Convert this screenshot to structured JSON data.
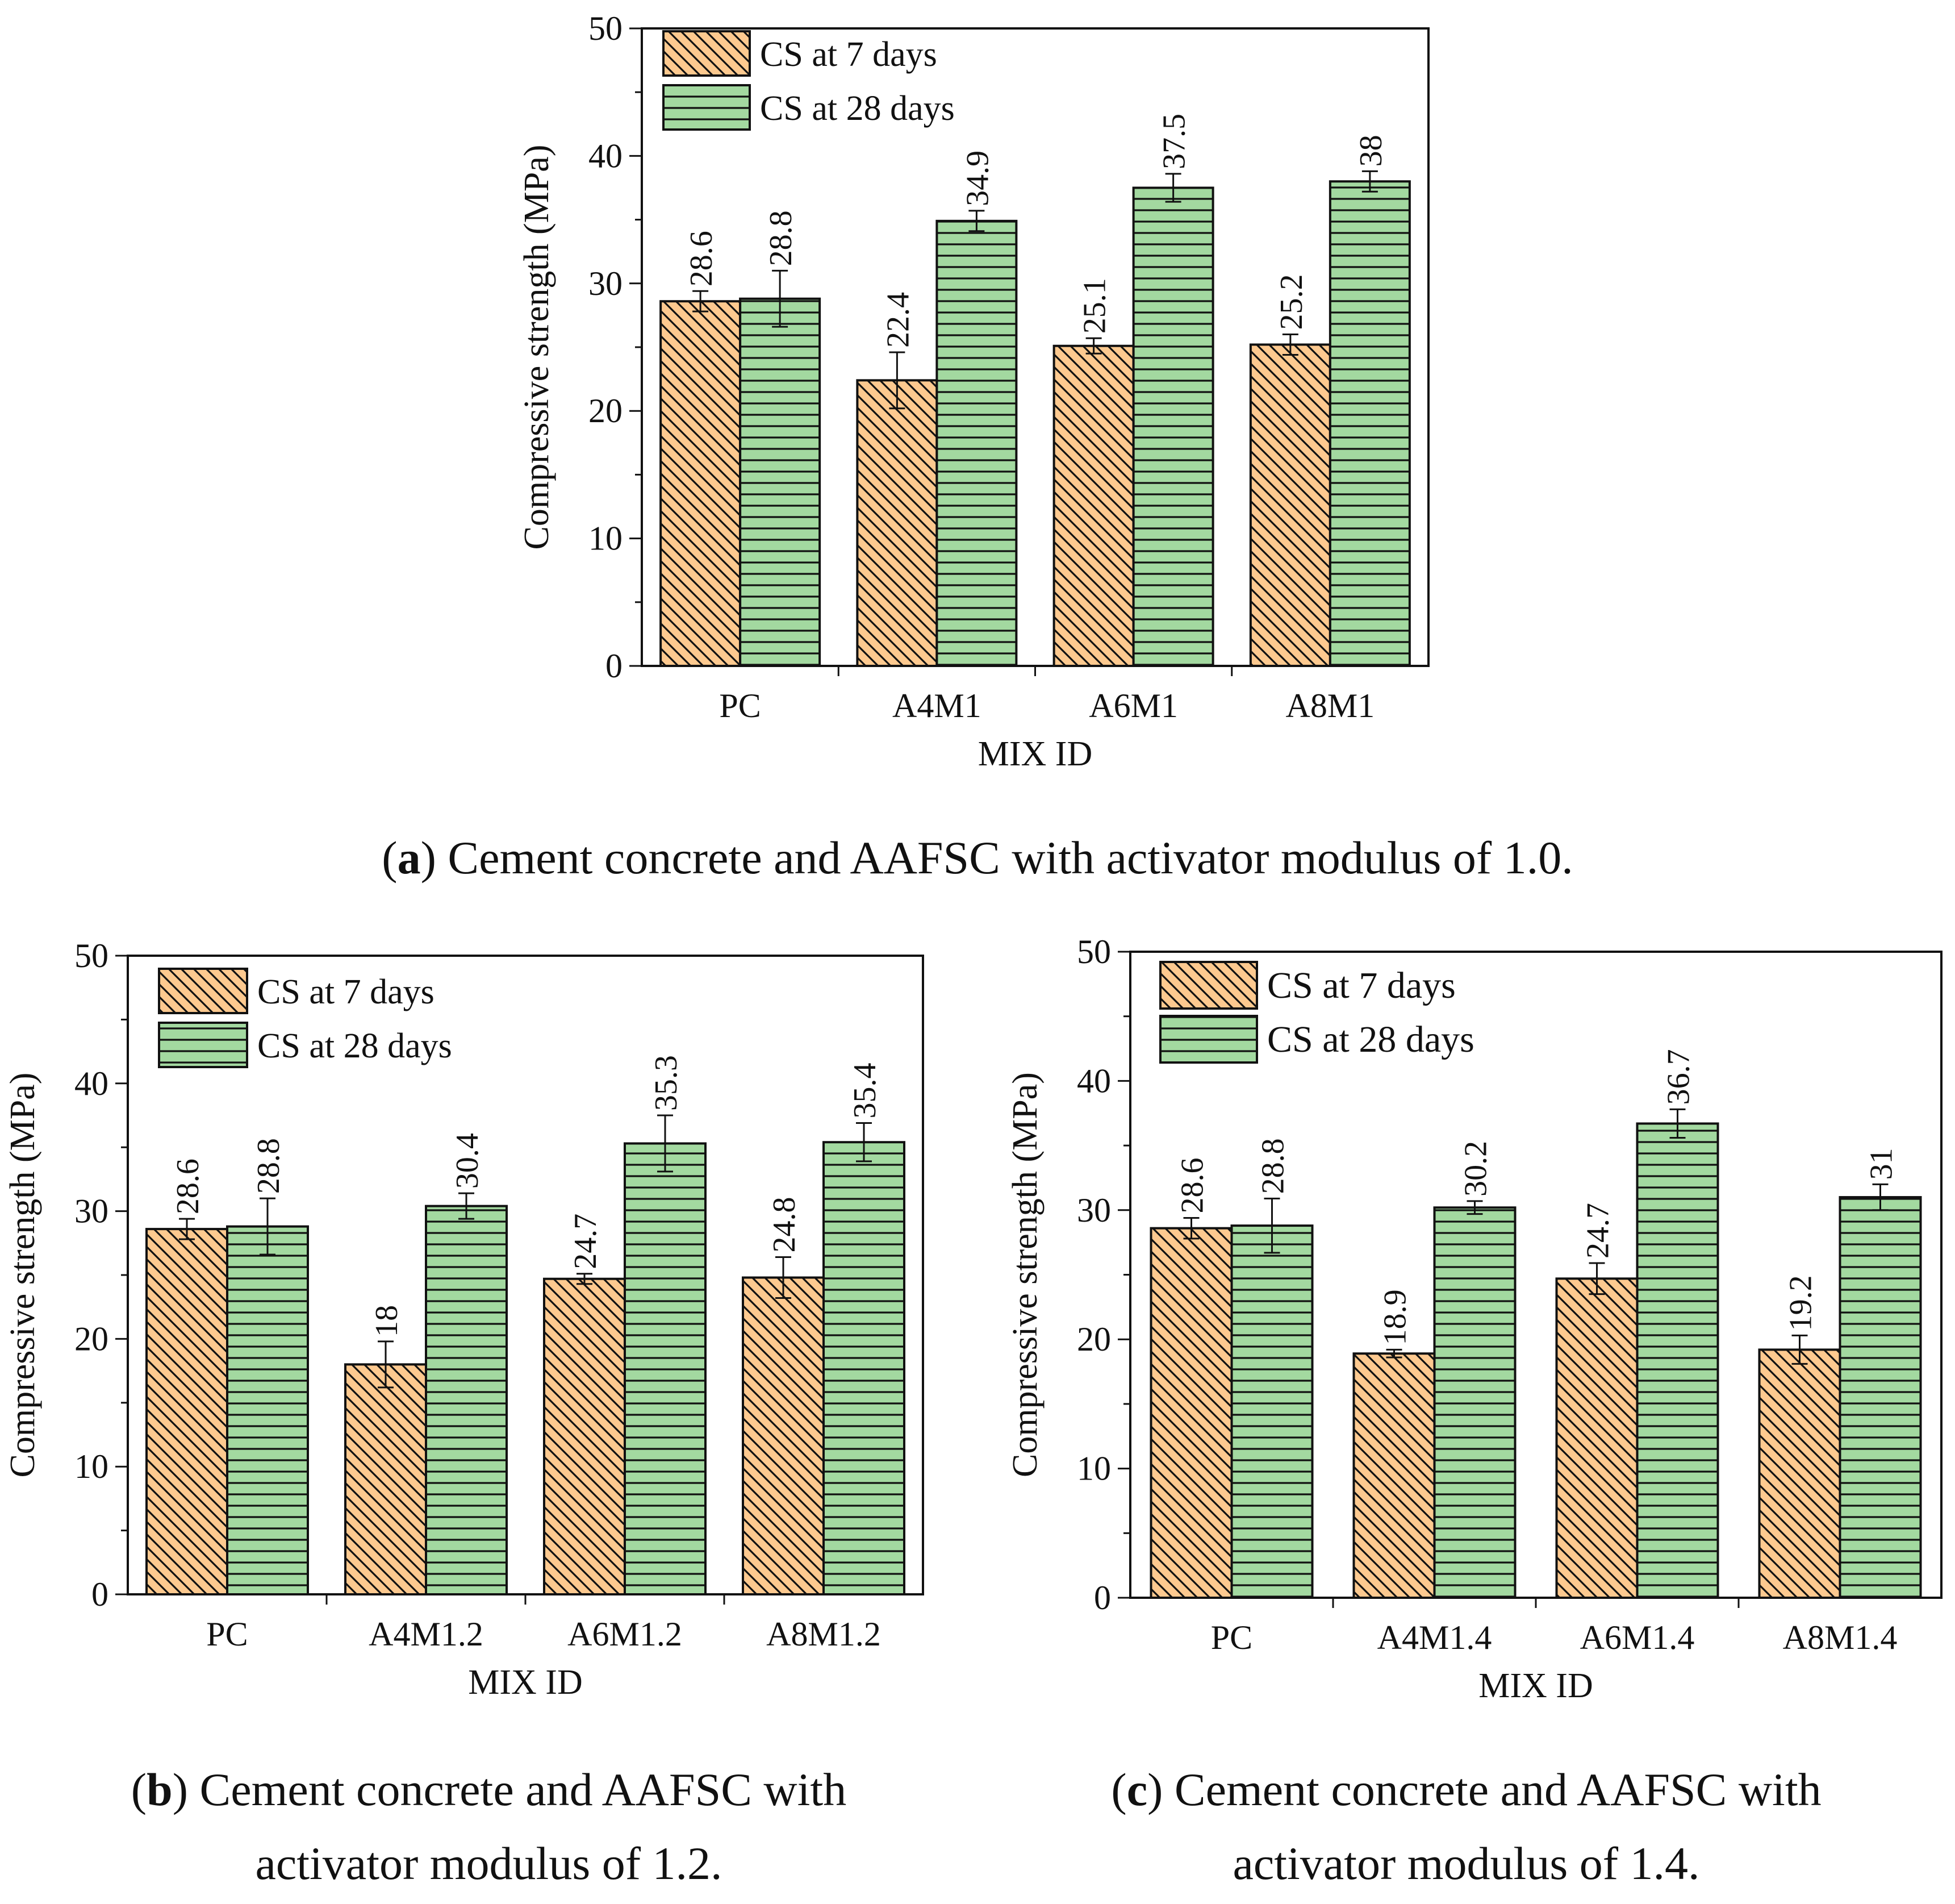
{
  "colors": {
    "cs7_fill": "#fdc98f",
    "cs28_fill": "#a3d9a0",
    "stroke": "#111111"
  },
  "chart_data": [
    {
      "type": "bar",
      "id": "a",
      "categories": [
        "PC",
        "A4M1",
        "A6M1",
        "A8M1"
      ],
      "series": [
        {
          "name": "CS at 7 days",
          "values": [
            28.6,
            22.4,
            25.1,
            25.2
          ],
          "errors": [
            0.8,
            2.2,
            0.6,
            0.8
          ],
          "labels": [
            "28.6",
            "22.4",
            "25.1",
            "25.2"
          ]
        },
        {
          "name": "CS at 28 days",
          "values": [
            28.8,
            34.9,
            37.5,
            38.0
          ],
          "errors": [
            2.2,
            0.8,
            1.1,
            0.8
          ],
          "labels": [
            "28.8",
            "34.9",
            "37.5",
            "38"
          ]
        }
      ],
      "xlabel": "MIX ID",
      "ylabel": "Compressive strength (MPa)",
      "ylim": [
        0,
        50
      ],
      "yticks": [
        "0",
        "10",
        "20",
        "30",
        "40",
        "50"
      ],
      "legend": "top-left",
      "caption_letter": "a",
      "caption_lines": [
        ") Cement concrete and AAFSC with activator modulus of 1.0."
      ]
    },
    {
      "type": "bar",
      "id": "b",
      "categories": [
        "PC",
        "A4M1.2",
        "A6M1.2",
        "A8M1.2"
      ],
      "series": [
        {
          "name": "CS at 7 days",
          "values": [
            28.6,
            18.0,
            24.7,
            24.8
          ],
          "errors": [
            0.8,
            1.8,
            0.4,
            1.6
          ],
          "labels": [
            "28.6",
            "18",
            "24.7",
            "24.8"
          ]
        },
        {
          "name": "CS at 28 days",
          "values": [
            28.8,
            30.4,
            35.3,
            35.4
          ],
          "errors": [
            2.2,
            1.0,
            2.2,
            1.5
          ],
          "labels": [
            "28.8",
            "30.4",
            "35.3",
            "35.4"
          ]
        }
      ],
      "xlabel": "MIX ID",
      "ylabel": "Compressive strength (MPa)",
      "ylim": [
        0,
        50
      ],
      "yticks": [
        "0",
        "10",
        "20",
        "30",
        "40",
        "50"
      ],
      "legend": "top-left",
      "caption_letter": "b",
      "caption_lines": [
        ") Cement concrete and AAFSC with",
        "activator modulus of 1.2."
      ]
    },
    {
      "type": "bar",
      "id": "c",
      "categories": [
        "PC",
        "A4M1.4",
        "A6M1.4",
        "A8M1.4"
      ],
      "series": [
        {
          "name": "CS at 7 days",
          "values": [
            28.6,
            18.9,
            24.7,
            19.2
          ],
          "errors": [
            0.8,
            0.3,
            1.2,
            1.1
          ],
          "labels": [
            "28.6",
            "18.9",
            "24.7",
            "19.2"
          ]
        },
        {
          "name": "CS at 28 days",
          "values": [
            28.8,
            30.2,
            36.7,
            31.0
          ],
          "errors": [
            2.1,
            0.5,
            1.1,
            1.0
          ],
          "labels": [
            "28.8",
            "30.2",
            "36.7",
            "31"
          ]
        }
      ],
      "xlabel": "MIX ID",
      "ylabel": "Compressive strength (MPa)",
      "ylim": [
        0,
        50
      ],
      "yticks": [
        "0",
        "10",
        "20",
        "30",
        "40",
        "50"
      ],
      "legend": "top-left",
      "caption_letter": "c",
      "caption_lines": [
        ") Cement concrete and AAFSC with",
        "activator modulus of 1.4."
      ]
    }
  ]
}
